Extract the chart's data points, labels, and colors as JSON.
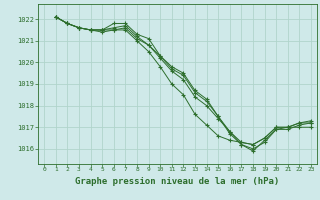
{
  "title": "Graphe pression niveau de la mer (hPa)",
  "background_color": "#cfe9e9",
  "grid_color": "#b0d4cc",
  "line_color": "#2d6e2d",
  "xlim": [
    -0.5,
    23.5
  ],
  "ylim": [
    1015.3,
    1022.7
  ],
  "yticks": [
    1016,
    1017,
    1018,
    1019,
    1020,
    1021,
    1022
  ],
  "xticks": [
    0,
    1,
    2,
    3,
    4,
    5,
    6,
    7,
    8,
    9,
    10,
    11,
    12,
    13,
    14,
    15,
    16,
    17,
    18,
    19,
    20,
    21,
    22,
    23
  ],
  "series": [
    [
      1022.1,
      1021.8,
      1021.6,
      1021.5,
      1021.5,
      1021.8,
      1021.8,
      1021.3,
      1021.1,
      1020.3,
      1019.8,
      1019.5,
      1018.7,
      1018.3,
      1017.5,
      1016.7,
      1016.2,
      1015.9,
      1016.4,
      1016.9,
      1017.0,
      1017.2,
      1017.2
    ],
    [
      1022.1,
      1021.8,
      1021.6,
      1021.5,
      1021.5,
      1021.6,
      1021.7,
      1021.2,
      1020.8,
      1020.3,
      1019.7,
      1019.4,
      1018.6,
      1018.2,
      1017.5,
      1016.8,
      1016.3,
      1016.2,
      1016.5,
      1017.0,
      1017.0,
      1017.2,
      1017.3
    ],
    [
      1022.1,
      1021.8,
      1021.6,
      1021.5,
      1021.4,
      1021.5,
      1021.6,
      1021.1,
      1020.8,
      1020.2,
      1019.6,
      1019.2,
      1018.4,
      1018.0,
      1017.4,
      1016.8,
      1016.2,
      1016.0,
      1016.3,
      1016.9,
      1016.9,
      1017.1,
      1017.2
    ],
    [
      1022.1,
      1021.8,
      1021.6,
      1021.5,
      1021.5,
      1021.5,
      1021.5,
      1021.0,
      1020.5,
      1019.8,
      1019.0,
      1018.5,
      1017.6,
      1017.1,
      1016.6,
      1016.4,
      1016.3,
      1016.2,
      1016.5,
      1017.0,
      1017.0,
      1017.0,
      1017.0
    ]
  ]
}
